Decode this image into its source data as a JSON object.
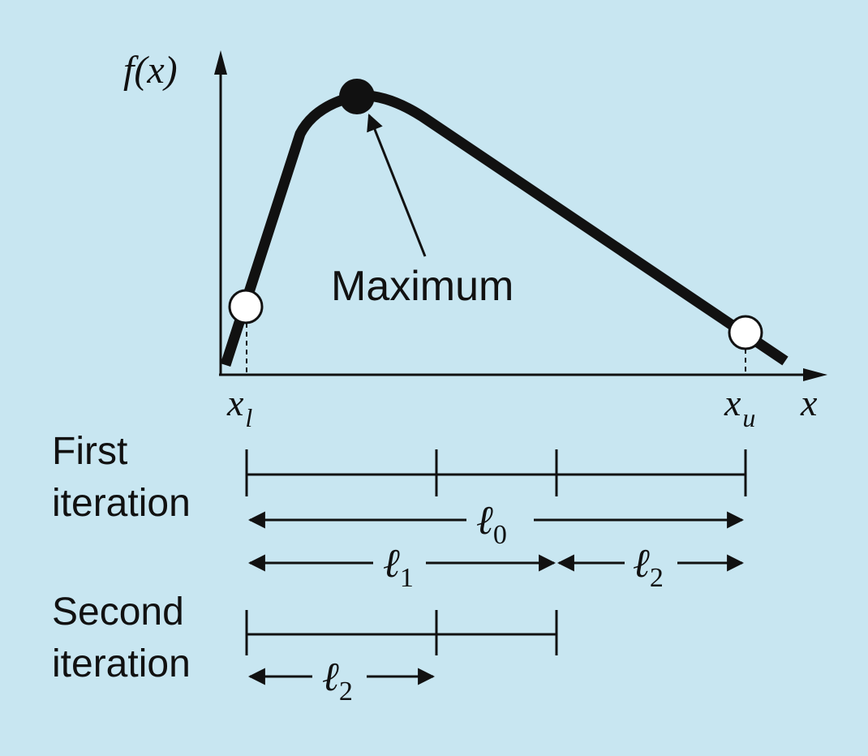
{
  "diagram": {
    "y_axis_label": "f(x)",
    "x_axis_label": "x",
    "lower_bound_label": "x",
    "lower_bound_subscript": "l",
    "upper_bound_label": "x",
    "upper_bound_subscript": "u",
    "maximum_label": "Maximum",
    "first_iteration_label": [
      "First",
      "iteration"
    ],
    "second_iteration_label": [
      "Second",
      "iteration"
    ],
    "interval_symbol": "ℓ",
    "l0_subscript": "0",
    "l1_subscript": "1",
    "l2_subscript": "2"
  },
  "colors": {
    "background": "#c8e6f1",
    "ink": "#111111",
    "open_point": "#ffffff"
  }
}
